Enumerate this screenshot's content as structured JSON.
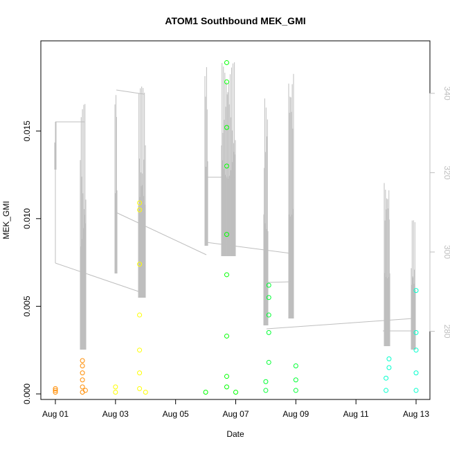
{
  "chart_data": {
    "type": "scatter",
    "title": "ATOM1 Southbound MEK_GMI",
    "xlabel": "Date",
    "ylabel": "MEK_GMI",
    "x_ticks": [
      "Aug 01",
      "Aug 03",
      "Aug 05",
      "Aug 07",
      "Aug 09",
      "Aug 11",
      "Aug 13"
    ],
    "y_ticks": [
      "0.000",
      "0.005",
      "0.010",
      "0.015"
    ],
    "y_tick_values": [
      0,
      0.005,
      0.01,
      0.015
    ],
    "right_ticks": [
      "280",
      "300",
      "320",
      "340"
    ],
    "right_tick_values": [
      280,
      300,
      320,
      340
    ],
    "xlim": [
      "Aug 01",
      "Aug 13"
    ],
    "ylim": [
      0,
      0.019
    ],
    "y2lim": [
      260,
      350
    ],
    "secondary_series_color": "#bebebe",
    "series": [
      {
        "color": "#ff8c00",
        "points": [
          {
            "date": "Aug 01",
            "y": 0.0002
          },
          {
            "date": "Aug 01",
            "y": 0.0003
          },
          {
            "date": "Aug 01",
            "y": 0.0001
          },
          {
            "date": "Aug 01.9",
            "y": 0.0001
          },
          {
            "date": "Aug 01.9",
            "y": 0.0004
          },
          {
            "date": "Aug 01.9",
            "y": 0.0008
          },
          {
            "date": "Aug 01.9",
            "y": 0.0012
          },
          {
            "date": "Aug 01.9",
            "y": 0.0016
          },
          {
            "date": "Aug 01.9",
            "y": 0.0019
          },
          {
            "date": "Aug 02",
            "y": 0.0002
          }
        ]
      },
      {
        "color": "#ffff00",
        "points": [
          {
            "date": "Aug 03",
            "y": 0.0001
          },
          {
            "date": "Aug 03",
            "y": 0.0004
          },
          {
            "date": "Aug 03.8",
            "y": 0.0003
          },
          {
            "date": "Aug 03.8",
            "y": 0.0012
          },
          {
            "date": "Aug 03.8",
            "y": 0.0025
          },
          {
            "date": "Aug 03.8",
            "y": 0.0045
          },
          {
            "date": "Aug 03.8",
            "y": 0.0074
          },
          {
            "date": "Aug 03.8",
            "y": 0.0105
          },
          {
            "date": "Aug 03.8",
            "y": 0.0109
          },
          {
            "date": "Aug 04",
            "y": 0.0001
          }
        ]
      },
      {
        "color": "#00ff00",
        "points": [
          {
            "date": "Aug 06",
            "y": 0.0001
          },
          {
            "date": "Aug 06.7",
            "y": 0.0004
          },
          {
            "date": "Aug 06.7",
            "y": 0.001
          },
          {
            "date": "Aug 06.7",
            "y": 0.0033
          },
          {
            "date": "Aug 06.7",
            "y": 0.0068
          },
          {
            "date": "Aug 06.7",
            "y": 0.0091
          },
          {
            "date": "Aug 06.7",
            "y": 0.013
          },
          {
            "date": "Aug 06.7",
            "y": 0.0152
          },
          {
            "date": "Aug 06.7",
            "y": 0.0178
          },
          {
            "date": "Aug 06.7",
            "y": 0.0189
          },
          {
            "date": "Aug 07",
            "y": 0.0001
          }
        ]
      },
      {
        "color": "#00ff33",
        "points": [
          {
            "date": "Aug 08",
            "y": 0.0002
          },
          {
            "date": "Aug 08",
            "y": 0.0007
          },
          {
            "date": "Aug 08.1",
            "y": 0.0018
          },
          {
            "date": "Aug 08.1",
            "y": 0.0035
          },
          {
            "date": "Aug 08.1",
            "y": 0.0045
          },
          {
            "date": "Aug 08.1",
            "y": 0.0055
          },
          {
            "date": "Aug 08.1",
            "y": 0.0062
          },
          {
            "date": "Aug 09",
            "y": 0.0002
          },
          {
            "date": "Aug 09",
            "y": 0.0008
          },
          {
            "date": "Aug 09",
            "y": 0.0016
          }
        ]
      },
      {
        "color": "#00ffcc",
        "points": [
          {
            "date": "Aug 12",
            "y": 0.0002
          },
          {
            "date": "Aug 12",
            "y": 0.0009
          },
          {
            "date": "Aug 12.1",
            "y": 0.0015
          },
          {
            "date": "Aug 12.1",
            "y": 0.002
          },
          {
            "date": "Aug 13",
            "y": 0.0002
          },
          {
            "date": "Aug 13",
            "y": 0.0012
          },
          {
            "date": "Aug 13",
            "y": 0.0025
          },
          {
            "date": "Aug 13",
            "y": 0.0035
          },
          {
            "date": "Aug 13",
            "y": 0.0059
          }
        ]
      }
    ]
  }
}
